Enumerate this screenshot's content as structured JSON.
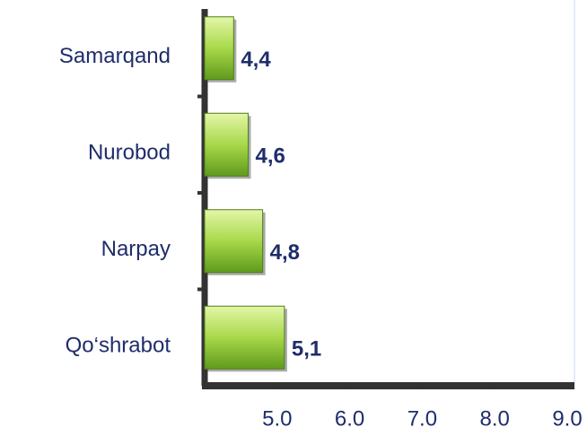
{
  "chart_data": {
    "type": "hbar",
    "categories": [
      "Samarqand",
      "Nurobod",
      "Narpay",
      "Qo‘shrabot"
    ],
    "values": [
      4.4,
      4.6,
      4.8,
      5.1
    ],
    "value_labels": [
      "4,4",
      "4,6",
      "4,8",
      "5,1"
    ],
    "color": "#9ccc3c",
    "xlim": [
      4,
      9
    ],
    "xticks": [
      {
        "value": 5,
        "label": "5.0"
      },
      {
        "value": 6,
        "label": "6.0"
      },
      {
        "value": 7,
        "label": "7.0"
      },
      {
        "value": 8,
        "label": "8.0"
      },
      {
        "value": 9,
        "label": "9.0"
      }
    ]
  }
}
